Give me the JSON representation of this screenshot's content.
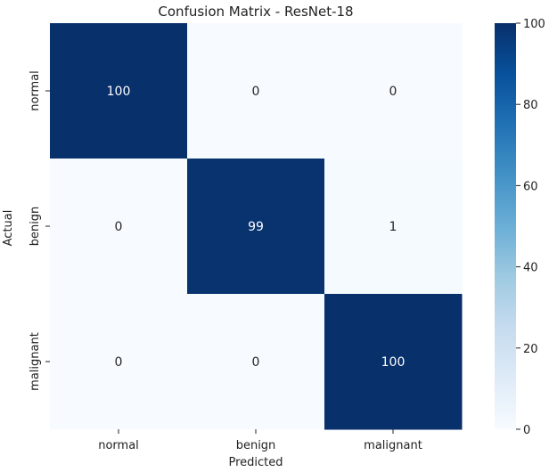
{
  "chart_data": {
    "type": "heatmap",
    "title": "Confusion Matrix - ResNet-18",
    "xlabel": "Predicted",
    "ylabel": "Actual",
    "x_categories": [
      "normal",
      "benign",
      "malignant"
    ],
    "y_categories": [
      "normal",
      "benign",
      "malignant"
    ],
    "matrix": [
      [
        100,
        0,
        0
      ],
      [
        0,
        99,
        1
      ],
      [
        0,
        0,
        100
      ]
    ],
    "colormap": "Blues",
    "color_low": "#f7fbff",
    "color_high": "#08306b",
    "colorbar": {
      "range": [
        0,
        100
      ],
      "ticks": [
        0,
        20,
        40,
        60,
        80,
        100
      ]
    },
    "annotation_color_dark": "#ffffff",
    "annotation_color_light": "#262626"
  }
}
